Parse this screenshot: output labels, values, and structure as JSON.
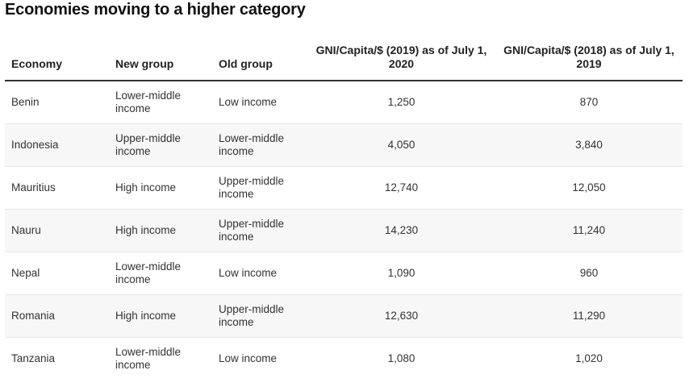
{
  "title": "Economies moving to a higher category",
  "table": {
    "headers": {
      "economy": "Economy",
      "new_group": "New group",
      "old_group": "Old group",
      "gni_2019": "GNI/Capita/$ (2019) as of July 1, 2020",
      "gni_2018": "GNI/Capita/$ (2018) as of July 1, 2019"
    },
    "rows": [
      {
        "economy": "Benin",
        "new_group": "Lower-middle income",
        "old_group": "Low income",
        "gni_2019": "1,250",
        "gni_2018": "870"
      },
      {
        "economy": "Indonesia",
        "new_group": "Upper-middle income",
        "old_group": "Lower-middle income",
        "gni_2019": "4,050",
        "gni_2018": "3,840"
      },
      {
        "economy": "Mauritius",
        "new_group": "High income",
        "old_group": "Upper-middle income",
        "gni_2019": "12,740",
        "gni_2018": "12,050"
      },
      {
        "economy": "Nauru",
        "new_group": "High income",
        "old_group": "Upper-middle income",
        "gni_2019": "14,230",
        "gni_2018": "11,240"
      },
      {
        "economy": "Nepal",
        "new_group": "Lower-middle income",
        "old_group": "Low income",
        "gni_2019": "1,090",
        "gni_2018": "960"
      },
      {
        "economy": "Romania",
        "new_group": "High income",
        "old_group": "Upper-middle income",
        "gni_2019": "12,630",
        "gni_2018": "11,290"
      },
      {
        "economy": "Tanzania",
        "new_group": "Lower-middle income",
        "old_group": "Low income",
        "gni_2019": "1,080",
        "gni_2018": "1,020"
      }
    ]
  }
}
